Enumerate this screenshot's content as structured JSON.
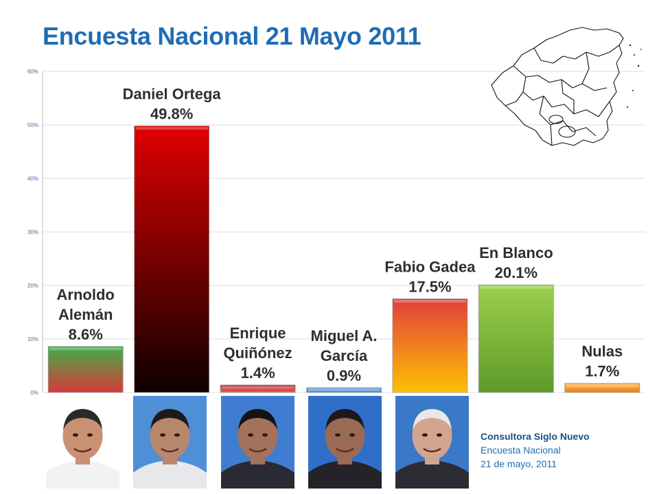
{
  "title": "Encuesta Nacional 21 Mayo 2011",
  "source": {
    "name": "Consultora Siglo Nuevo",
    "line2": "Encuesta Nacional",
    "line3": "21 de mayo, 2011"
  },
  "chart_data": {
    "type": "bar",
    "title": "Encuesta Nacional 21 Mayo 2011",
    "xlabel": "",
    "ylabel": "",
    "ylim": [
      0,
      60
    ],
    "ytick_values": [
      0,
      10,
      20,
      30,
      40,
      50,
      60
    ],
    "ytick_labels": [
      "0%",
      "10%",
      "20%",
      "30%",
      "40%",
      "50%",
      "60%"
    ],
    "grid": true,
    "categories": [
      "Arnoldo Alemán",
      "Daniel Ortega",
      "Enrique Quiñónez",
      "Miguel A. García",
      "Fabio Gadea",
      "En Blanco",
      "Nulas"
    ],
    "values": [
      8.6,
      49.8,
      1.4,
      0.9,
      17.5,
      20.1,
      1.7
    ],
    "labels": [
      [
        "Arnoldo",
        "Alemán",
        "8.6%"
      ],
      [
        "Daniel Ortega",
        "49.8%"
      ],
      [
        "Enrique",
        "Quiñónez",
        "1.4%"
      ],
      [
        "Miguel A.",
        "García",
        "0.9%"
      ],
      [
        "Fabio Gadea",
        "17.5%"
      ],
      [
        "En Blanco",
        "20.1%"
      ],
      [
        "Nulas",
        "1.7%"
      ]
    ],
    "bar_colors": [
      [
        "#d93a3a",
        "#3fae49"
      ],
      [
        "#0d0000",
        "#e00000"
      ],
      [
        "#e25a5a",
        "#c42b2b"
      ],
      [
        "#3a78c8",
        "#7fb0e8"
      ],
      [
        "#ffc000",
        "#e0403a"
      ],
      [
        "#5e9a2a",
        "#9ccf4a"
      ],
      [
        "#e8801a",
        "#ffb347"
      ]
    ]
  },
  "photos": [
    {
      "name": "Arnoldo Alemán",
      "bg": "#ffffff",
      "skin": "#c99073",
      "hair": "#2a2a2a",
      "shirt": "#f2f2f2"
    },
    {
      "name": "Daniel Ortega",
      "bg": "#4f8fd8",
      "skin": "#b9876b",
      "hair": "#1b1b1b",
      "shirt": "#e8e8ec"
    },
    {
      "name": "Enrique Quiñónez",
      "bg": "#3f7dd0",
      "skin": "#a5715a",
      "hair": "#141414",
      "shirt": "#2a2a35"
    },
    {
      "name": "Miguel A. García",
      "bg": "#2f6fc9",
      "skin": "#9a6a55",
      "hair": "#1a1a1a",
      "shirt": "#232329"
    },
    {
      "name": "Fabio Gadea",
      "bg": "#3a78c8",
      "skin": "#d3a48e",
      "hair": "#e8e8e8",
      "shirt": "#2c2c34"
    }
  ]
}
